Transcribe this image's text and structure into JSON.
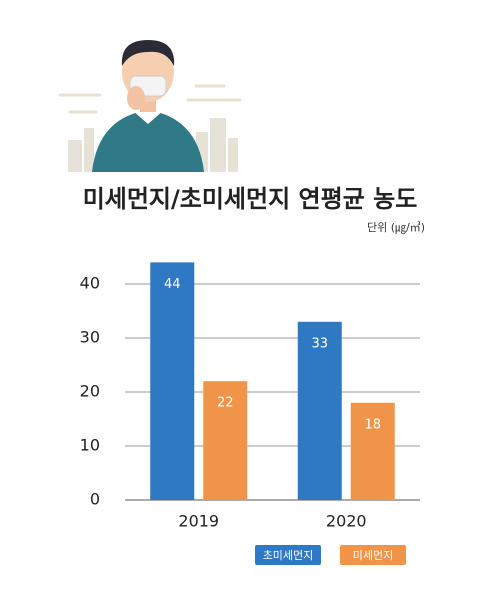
{
  "chart_data": {
    "type": "bar",
    "title": "미세먼지/초미세먼지 연평균 농도",
    "unit_label": "단위 (㎍/㎥)",
    "categories": [
      "2019",
      "2020"
    ],
    "series": [
      {
        "name": "초미세먼지",
        "color": "#2f78c4",
        "values": [
          44,
          33
        ]
      },
      {
        "name": "미세먼지",
        "color": "#f0944a",
        "values": [
          22,
          18
        ]
      }
    ],
    "ylim": [
      0,
      45
    ],
    "yticks": [
      0,
      10,
      20,
      30,
      40
    ],
    "grid": true,
    "legend": "bottom"
  }
}
